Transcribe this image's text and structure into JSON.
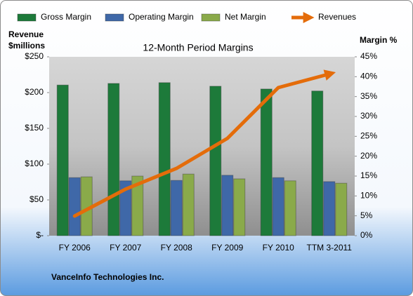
{
  "chart_data": {
    "type": "bar",
    "title": "12-Month Period Margins",
    "ylabel": [
      "Revenue",
      "$millions"
    ],
    "y2label": "Margin %",
    "caption": "VanceInfo Technologies Inc.",
    "categories": [
      "FY 2006",
      "FY 2007",
      "FY 2008",
      "FY 2009",
      "FY 2010",
      "TTM 3-2011"
    ],
    "series": [
      {
        "name": "Gross Margin",
        "color": "#1d7a3a",
        "axis": "y2",
        "values": [
          37.9,
          38.3,
          38.5,
          37.6,
          36.9,
          36.4
        ]
      },
      {
        "name": "Operating Margin",
        "color": "#3f68a8",
        "axis": "y2",
        "values": [
          14.6,
          13.8,
          13.9,
          15.2,
          14.6,
          13.6
        ]
      },
      {
        "name": "Net Margin",
        "color": "#8aaa4a",
        "axis": "y2",
        "values": [
          14.8,
          15.0,
          15.5,
          14.3,
          13.8,
          13.2
        ]
      },
      {
        "name": "Revenues",
        "color": "#e46c0a",
        "type": "line",
        "values": [
          27.5,
          65,
          94,
          136,
          207,
          226
        ]
      }
    ],
    "ylim": [
      0,
      250
    ],
    "yticks": [
      {
        "value": 0,
        "label": "$-"
      },
      {
        "value": 50,
        "label": "$50"
      },
      {
        "value": 100,
        "label": "$100"
      },
      {
        "value": 150,
        "label": "$150"
      },
      {
        "value": 200,
        "label": "$200"
      },
      {
        "value": 250,
        "label": "$250"
      }
    ],
    "y2lim": [
      0,
      45
    ],
    "y2ticks": [
      {
        "value": 0,
        "label": "0%"
      },
      {
        "value": 5,
        "label": "5%"
      },
      {
        "value": 10,
        "label": "10%"
      },
      {
        "value": 15,
        "label": "15%"
      },
      {
        "value": 20,
        "label": "20%"
      },
      {
        "value": 25,
        "label": "25%"
      },
      {
        "value": 30,
        "label": "30%"
      },
      {
        "value": 35,
        "label": "35%"
      },
      {
        "value": 40,
        "label": "40%"
      },
      {
        "value": 45,
        "label": "45%"
      }
    ]
  }
}
